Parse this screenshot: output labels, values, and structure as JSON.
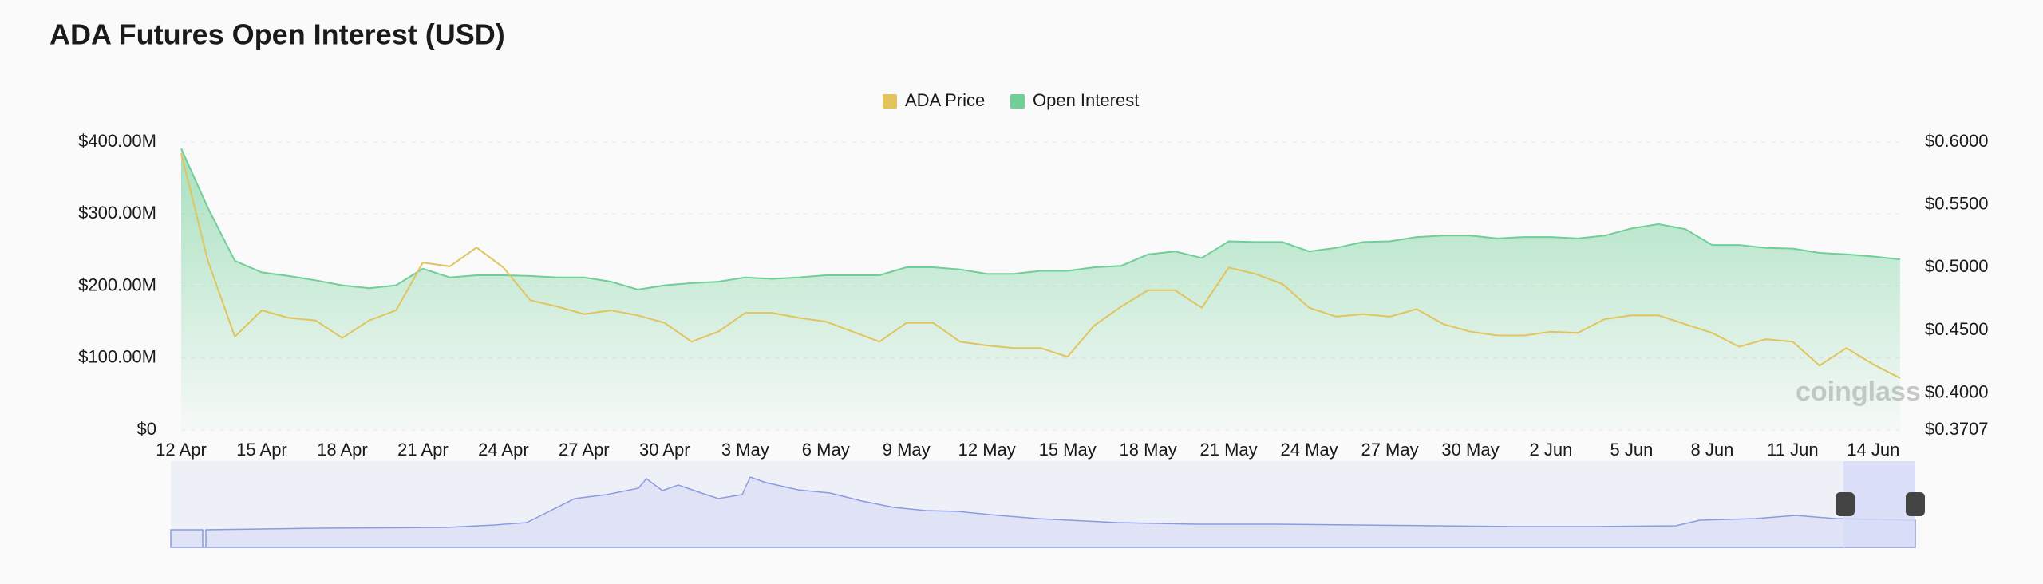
{
  "chart_data": {
    "type": "dual-axis-area-line",
    "title": "ADA Futures Open Interest (USD)",
    "watermark": "coinglass",
    "legend": "top",
    "grid": true,
    "categories": [
      "12 Apr",
      null,
      null,
      "15 Apr",
      null,
      null,
      "18 Apr",
      null,
      null,
      "21 Apr",
      null,
      null,
      "24 Apr",
      null,
      null,
      "27 Apr",
      null,
      null,
      "30 Apr",
      null,
      null,
      "3 May",
      null,
      null,
      "6 May",
      null,
      null,
      "9 May",
      null,
      null,
      "12 May",
      null,
      null,
      "15 May",
      null,
      null,
      "18 May",
      null,
      null,
      "21 May",
      null,
      null,
      "24 May",
      null,
      null,
      "27 May",
      null,
      null,
      "30 May",
      null,
      null,
      "2 Jun",
      null,
      null,
      "5 Jun",
      null,
      null,
      "8 Jun",
      null,
      null,
      "11 Jun",
      null,
      null,
      "14 Jun",
      null
    ],
    "ylim": [
      0,
      400000000
    ],
    "yticks": [
      {
        "value": 0,
        "label": "$0"
      },
      {
        "value": 100000000,
        "label": "$100.00M"
      },
      {
        "value": 200000000,
        "label": "$200.00M"
      },
      {
        "value": 300000000,
        "label": "$300.00M"
      },
      {
        "value": 400000000,
        "label": "$400.00M"
      }
    ],
    "y2lim": [
      0.3707,
      0.6
    ],
    "y2ticks": [
      {
        "value": 0.3707,
        "label": "$0.3707"
      },
      {
        "value": 0.4,
        "label": "$0.4000"
      },
      {
        "value": 0.45,
        "label": "$0.4500"
      },
      {
        "value": 0.5,
        "label": "$0.5000"
      },
      {
        "value": 0.55,
        "label": "$0.5500"
      },
      {
        "value": 0.6,
        "label": "$0.6000"
      }
    ],
    "series": [
      {
        "name": "ADA Price",
        "color": "#e2c35c",
        "axis": "y2",
        "kind": "line",
        "values": [
          0.591,
          0.505,
          0.445,
          0.466,
          0.46,
          0.458,
          0.444,
          0.458,
          0.466,
          0.504,
          0.501,
          0.516,
          0.5,
          0.474,
          0.469,
          0.463,
          0.466,
          0.462,
          0.456,
          0.441,
          0.449,
          0.464,
          0.464,
          0.46,
          0.457,
          0.449,
          0.441,
          0.456,
          0.456,
          0.441,
          0.438,
          0.436,
          0.436,
          0.429,
          0.454,
          0.469,
          0.482,
          0.482,
          0.468,
          0.5,
          0.495,
          0.487,
          0.468,
          0.461,
          0.463,
          0.461,
          0.467,
          0.455,
          0.449,
          0.446,
          0.446,
          0.449,
          0.448,
          0.459,
          0.462,
          0.462,
          0.455,
          0.448,
          0.437,
          0.443,
          0.441,
          0.422,
          0.436,
          0.423,
          0.412
        ]
      },
      {
        "name": "Open Interest",
        "color": "#6fcf97",
        "kind": "area",
        "values": [
          391000000,
          308000000,
          235000000,
          219000000,
          214000000,
          208000000,
          201000000,
          197000000,
          201000000,
          224000000,
          212000000,
          215000000,
          215000000,
          214000000,
          212000000,
          212000000,
          206000000,
          195000000,
          201000000,
          204000000,
          206000000,
          212000000,
          210000000,
          212000000,
          215000000,
          215000000,
          215000000,
          226000000,
          226000000,
          223000000,
          217000000,
          217000000,
          221000000,
          221000000,
          226000000,
          228000000,
          244000000,
          248000000,
          239000000,
          262000000,
          261000000,
          261000000,
          248000000,
          253000000,
          261000000,
          262000000,
          268000000,
          270000000,
          270000000,
          266000000,
          268000000,
          268000000,
          266000000,
          270000000,
          280000000,
          286000000,
          279000000,
          257000000,
          257000000,
          253000000,
          252000000,
          246000000,
          244000000,
          241000000,
          237000000
        ]
      }
    ]
  }
}
